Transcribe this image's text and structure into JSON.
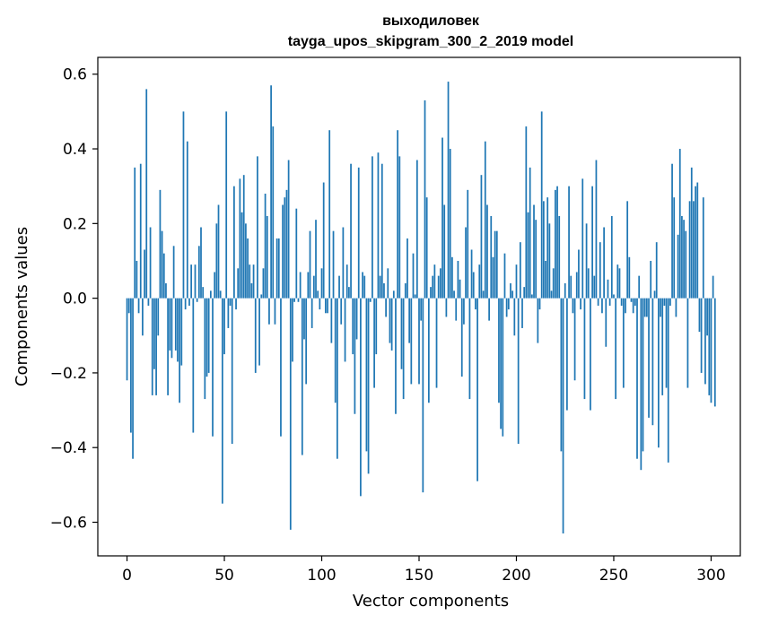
{
  "chart_data": {
    "type": "bar",
    "title": "выходиловек",
    "subtitle": "tayga_upos_skipgram_300_2_2019 model",
    "xlabel": "Vector components",
    "ylabel": "Components values",
    "xlim": [
      -15,
      315
    ],
    "ylim": [
      -0.69,
      0.645
    ],
    "x_ticks": [
      0,
      50,
      100,
      150,
      200,
      250,
      300
    ],
    "x_tick_labels": [
      "0",
      "50",
      "100",
      "150",
      "200",
      "250",
      "300"
    ],
    "y_ticks": [
      -0.6,
      -0.4,
      -0.2,
      0.0,
      0.2,
      0.4,
      0.6
    ],
    "y_tick_labels": [
      "−0.6",
      "−0.4",
      "−0.2",
      "0.0",
      "0.2",
      "0.4",
      "0.6"
    ],
    "bar_color": "#1f77b4",
    "values": [
      -0.22,
      -0.04,
      -0.36,
      -0.43,
      0.35,
      0.1,
      -0.04,
      0.36,
      -0.1,
      0.13,
      0.56,
      -0.02,
      0.19,
      -0.26,
      -0.19,
      -0.26,
      -0.1,
      0.29,
      0.18,
      0.12,
      0.04,
      -0.26,
      -0.14,
      -0.16,
      0.14,
      -0.14,
      -0.17,
      -0.28,
      -0.18,
      0.5,
      -0.03,
      0.42,
      -0.02,
      0.09,
      -0.36,
      0.09,
      -0.01,
      0.14,
      0.19,
      0.03,
      -0.27,
      -0.21,
      -0.2,
      0.02,
      -0.37,
      0.07,
      0.2,
      0.25,
      0.02,
      -0.55,
      -0.15,
      0.5,
      -0.08,
      -0.02,
      -0.39,
      0.3,
      -0.03,
      0.08,
      0.32,
      0.23,
      0.33,
      0.2,
      0.16,
      0.09,
      0.04,
      0.09,
      -0.2,
      0.38,
      -0.18,
      0.01,
      0.08,
      0.28,
      0.22,
      -0.07,
      0.57,
      0.46,
      -0.07,
      0.16,
      0.16,
      -0.37,
      0.25,
      0.27,
      0.29,
      0.37,
      -0.62,
      -0.17,
      -0.01,
      0.24,
      -0.01,
      0.07,
      -0.42,
      -0.11,
      -0.23,
      0.07,
      0.18,
      -0.08,
      0.06,
      0.21,
      0.02,
      -0.03,
      0.08,
      0.31,
      -0.04,
      -0.04,
      0.45,
      -0.12,
      0.18,
      -0.28,
      -0.43,
      0.06,
      -0.07,
      0.19,
      -0.17,
      0.09,
      0.03,
      0.36,
      -0.15,
      -0.31,
      -0.11,
      0.35,
      -0.53,
      0.07,
      0.06,
      -0.41,
      -0.47,
      -0.01,
      0.38,
      -0.24,
      -0.15,
      0.39,
      0.06,
      0.36,
      0.04,
      -0.05,
      0.08,
      -0.12,
      -0.14,
      0.02,
      -0.31,
      0.45,
      0.38,
      -0.19,
      -0.27,
      0.04,
      0.16,
      -0.12,
      -0.23,
      0.12,
      0.01,
      0.37,
      -0.23,
      -0.06,
      -0.52,
      0.53,
      0.27,
      -0.28,
      0.03,
      0.06,
      0.09,
      -0.24,
      0.06,
      0.08,
      0.43,
      0.25,
      -0.05,
      0.58,
      0.4,
      0.11,
      0.02,
      -0.06,
      0.1,
      0.05,
      -0.21,
      -0.07,
      0.19,
      0.29,
      -0.27,
      0.13,
      0.07,
      -0.03,
      -0.49,
      0.09,
      0.33,
      0.02,
      0.42,
      0.25,
      -0.06,
      0.22,
      0.11,
      0.18,
      0.18,
      -0.28,
      -0.35,
      -0.37,
      0.12,
      -0.05,
      -0.03,
      0.04,
      0.02,
      -0.1,
      0.09,
      -0.39,
      0.15,
      -0.08,
      0.03,
      0.46,
      0.23,
      0.35,
      0.01,
      0.25,
      0.21,
      -0.12,
      -0.03,
      0.5,
      0.26,
      0.1,
      0.27,
      0.2,
      0.02,
      0.08,
      0.29,
      0.3,
      0.22,
      -0.41,
      -0.63,
      0.04,
      -0.3,
      0.3,
      0.06,
      -0.04,
      -0.22,
      0.07,
      0.13,
      -0.03,
      0.32,
      -0.27,
      0.2,
      0.08,
      -0.3,
      0.3,
      0.06,
      0.37,
      -0.02,
      0.15,
      -0.04,
      0.19,
      -0.13,
      0.05,
      -0.02,
      0.22,
      0.01,
      -0.27,
      0.09,
      0.08,
      -0.02,
      -0.24,
      -0.04,
      0.26,
      0.11,
      -0.01,
      -0.04,
      -0.02,
      -0.43,
      0.06,
      -0.46,
      -0.41,
      -0.05,
      -0.05,
      -0.32,
      0.1,
      -0.34,
      0.02,
      0.15,
      -0.4,
      -0.05,
      -0.26,
      -0.02,
      -0.24,
      -0.44,
      -0.02,
      0.36,
      0.27,
      -0.05,
      0.17,
      0.4,
      0.22,
      0.21,
      0.18,
      -0.24,
      0.26,
      0.35,
      0.26,
      0.3,
      0.31,
      -0.09,
      -0.2,
      0.27,
      -0.23,
      -0.1,
      -0.26,
      -0.28,
      0.06,
      -0.29
    ]
  }
}
